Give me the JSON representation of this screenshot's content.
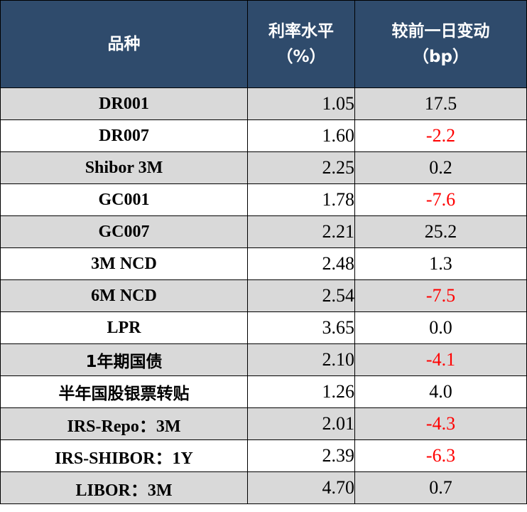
{
  "table": {
    "headers": {
      "name": "品种",
      "rate_line1": "利率水平",
      "rate_line2": "（%）",
      "change_line1": "较前一日变动",
      "change_line2": "（bp）"
    },
    "rows": [
      {
        "name": "DR001",
        "rate": "1.05",
        "change": "17.5"
      },
      {
        "name": "DR007",
        "rate": "1.60",
        "change": "-2.2"
      },
      {
        "name": "Shibor 3M",
        "rate": "2.25",
        "change": "0.2"
      },
      {
        "name": "GC001",
        "rate": "1.78",
        "change": "-7.6"
      },
      {
        "name": "GC007",
        "rate": "2.21",
        "change": "25.2"
      },
      {
        "name": "3M NCD",
        "rate": "2.48",
        "change": "1.3"
      },
      {
        "name": "6M NCD",
        "rate": "2.54",
        "change": "-7.5"
      },
      {
        "name": "LPR",
        "rate": "3.65",
        "change": "0.0"
      },
      {
        "name": "1年期国债",
        "rate": "2.10",
        "change": "-4.1"
      },
      {
        "name": "半年国股银票转贴",
        "rate": "1.26",
        "change": "4.0"
      },
      {
        "name": "IRS-Repo：3M",
        "rate": "2.01",
        "change": "-4.3"
      },
      {
        "name": "IRS-SHIBOR：1Y",
        "rate": "2.39",
        "change": "-6.3"
      },
      {
        "name": "LIBOR：3M",
        "rate": "4.70",
        "change": "0.7"
      }
    ]
  },
  "colors": {
    "header_bg": "#2f4b6c",
    "header_text": "#ffffff",
    "band_gray": "#d9d9d9",
    "negative": "#ff0000"
  }
}
